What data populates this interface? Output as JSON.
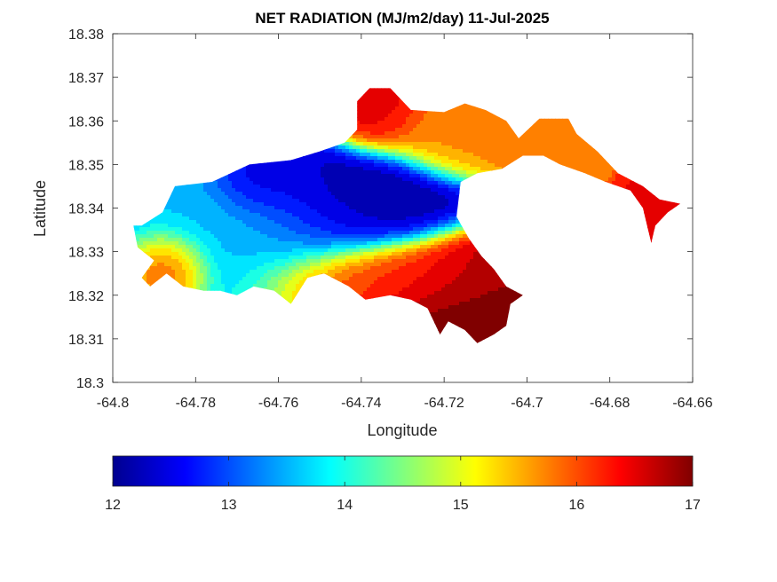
{
  "chart_data": {
    "type": "heatmap",
    "title": "NET RADIATION (MJ/m2/day) 11-Jul-2025",
    "xlabel": "Longitude",
    "ylabel": "Latitude",
    "xlim": [
      -64.8,
      -64.66
    ],
    "ylim": [
      18.3,
      18.38
    ],
    "xticks": [
      "-64.8",
      "-64.78",
      "-64.76",
      "-64.74",
      "-64.72",
      "-64.7",
      "-64.68",
      "-64.66"
    ],
    "yticks": [
      "18.3",
      "18.31",
      "18.32",
      "18.33",
      "18.34",
      "18.35",
      "18.36",
      "18.37",
      "18.38"
    ],
    "colorbar": {
      "colormap": "jet",
      "range": [
        12,
        17
      ],
      "ticks": [
        "12",
        "13",
        "14",
        "15",
        "16",
        "17"
      ]
    },
    "island_outline_lonlat": [
      [
        -64.793,
        18.336
      ],
      [
        -64.788,
        18.339
      ],
      [
        -64.785,
        18.345
      ],
      [
        -64.776,
        18.346
      ],
      [
        -64.767,
        18.35
      ],
      [
        -64.757,
        18.351
      ],
      [
        -64.75,
        18.353
      ],
      [
        -64.744,
        18.355
      ],
      [
        -64.741,
        18.358
      ],
      [
        -64.741,
        18.3645
      ],
      [
        -64.738,
        18.3675
      ],
      [
        -64.733,
        18.3675
      ],
      [
        -64.728,
        18.3625
      ],
      [
        -64.72,
        18.362
      ],
      [
        -64.715,
        18.364
      ],
      [
        -64.71,
        18.3625
      ],
      [
        -64.705,
        18.36
      ],
      [
        -64.702,
        18.356
      ],
      [
        -64.697,
        18.3605
      ],
      [
        -64.69,
        18.3605
      ],
      [
        -64.688,
        18.357
      ],
      [
        -64.683,
        18.353
      ],
      [
        -64.678,
        18.348
      ],
      [
        -64.672,
        18.345
      ],
      [
        -64.668,
        18.342
      ],
      [
        -64.663,
        18.341
      ],
      [
        -64.666,
        18.339
      ],
      [
        -64.669,
        18.336
      ],
      [
        -64.67,
        18.332
      ],
      [
        -64.671,
        18.336
      ],
      [
        -64.672,
        18.34
      ],
      [
        -64.675,
        18.344
      ],
      [
        -64.681,
        18.346
      ],
      [
        -64.686,
        18.348
      ],
      [
        -64.692,
        18.35
      ],
      [
        -64.696,
        18.352
      ],
      [
        -64.701,
        18.352
      ],
      [
        -64.706,
        18.349
      ],
      [
        -64.712,
        18.348
      ],
      [
        -64.716,
        18.346
      ],
      [
        -64.717,
        18.338
      ],
      [
        -64.714,
        18.333
      ],
      [
        -64.711,
        18.329
      ],
      [
        -64.708,
        18.326
      ],
      [
        -64.705,
        18.322
      ],
      [
        -64.701,
        18.32
      ],
      [
        -64.704,
        18.318
      ],
      [
        -64.705,
        18.313
      ],
      [
        -64.708,
        18.311
      ],
      [
        -64.712,
        18.309
      ],
      [
        -64.715,
        18.312
      ],
      [
        -64.719,
        18.314
      ],
      [
        -64.721,
        18.311
      ],
      [
        -64.724,
        18.317
      ],
      [
        -64.728,
        18.319
      ],
      [
        -64.733,
        18.32
      ],
      [
        -64.739,
        18.319
      ],
      [
        -64.743,
        18.322
      ],
      [
        -64.749,
        18.325
      ],
      [
        -64.753,
        18.324
      ],
      [
        -64.757,
        18.318
      ],
      [
        -64.761,
        18.321
      ],
      [
        -64.766,
        18.322
      ],
      [
        -64.77,
        18.32
      ],
      [
        -64.774,
        18.321
      ],
      [
        -64.778,
        18.321
      ],
      [
        -64.783,
        18.322
      ],
      [
        -64.787,
        18.325
      ],
      [
        -64.791,
        18.322
      ],
      [
        -64.793,
        18.324
      ],
      [
        -64.79,
        18.328
      ],
      [
        -64.794,
        18.331
      ],
      [
        -64.795,
        18.336
      ]
    ],
    "field_centers": [
      {
        "lon": -64.745,
        "lat": 18.342,
        "value": 12.0,
        "spread_lon": 0.013,
        "spread_lat": 0.006
      },
      {
        "lon": -64.764,
        "lat": 18.346,
        "value": 12.3,
        "spread_lon": 0.006,
        "spread_lat": 0.004
      },
      {
        "lon": -64.77,
        "lat": 18.336,
        "value": 13.6,
        "spread_lon": 0.018,
        "spread_lat": 0.008
      },
      {
        "lon": -64.787,
        "lat": 18.327,
        "value": 16.3,
        "spread_lon": 0.005,
        "spread_lat": 0.004
      },
      {
        "lon": -64.712,
        "lat": 18.318,
        "value": 17.0,
        "spread_lon": 0.012,
        "spread_lat": 0.007
      },
      {
        "lon": -64.733,
        "lat": 18.324,
        "value": 16.2,
        "spread_lon": 0.014,
        "spread_lat": 0.004
      },
      {
        "lon": -64.736,
        "lat": 18.363,
        "value": 16.5,
        "spread_lon": 0.006,
        "spread_lat": 0.005
      },
      {
        "lon": -64.718,
        "lat": 18.358,
        "value": 15.7,
        "spread_lon": 0.008,
        "spread_lat": 0.005
      },
      {
        "lon": -64.699,
        "lat": 18.357,
        "value": 15.8,
        "spread_lon": 0.007,
        "spread_lat": 0.004
      },
      {
        "lon": -64.669,
        "lat": 18.338,
        "value": 16.4,
        "spread_lon": 0.004,
        "spread_lat": 0.004
      }
    ]
  }
}
